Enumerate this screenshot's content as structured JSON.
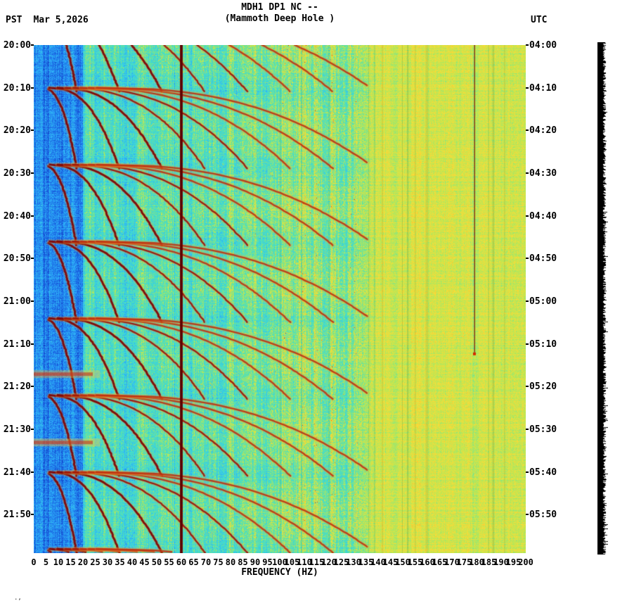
{
  "header": {
    "timezone_left": "PST",
    "date": "Mar 5,2026",
    "title_line1": "MDH1 DP1 NC --",
    "title_line2": "(Mammoth Deep Hole )",
    "timezone_right": "UTC"
  },
  "footer": {
    "corner_mark": ".,"
  },
  "chart_data": {
    "type": "heatmap",
    "subtype": "seismic-spectrogram",
    "title": "MDH1 DP1 NC -- (Mammoth Deep Hole )",
    "xlabel": "FREQUENCY (HZ)",
    "x_range_hz": [
      0,
      200
    ],
    "x_tick_step_hz": 5,
    "x_tick_labels": [
      "0",
      "5",
      "10",
      "15",
      "20",
      "25",
      "30",
      "35",
      "40",
      "45",
      "50",
      "55",
      "60",
      "65",
      "70",
      "75",
      "80",
      "85",
      "90",
      "95",
      "100",
      "105",
      "110",
      "115",
      "120",
      "125",
      "130",
      "135",
      "140",
      "145",
      "150",
      "155",
      "160",
      "165",
      "170",
      "175",
      "180",
      "185",
      "190",
      "195",
      "200"
    ],
    "y_left_timezone": "PST",
    "y_right_timezone": "UTC",
    "y_left_tick_labels": [
      "20:00",
      "20:10",
      "20:20",
      "20:30",
      "20:40",
      "20:50",
      "21:00",
      "21:10",
      "21:20",
      "21:30",
      "21:40",
      "21:50"
    ],
    "y_right_tick_labels": [
      "04:00",
      "04:10",
      "04:20",
      "04:30",
      "04:40",
      "04:50",
      "05:00",
      "05:10",
      "05:20",
      "05:30",
      "05:40",
      "05:50"
    ],
    "time_span_minutes": 119,
    "minutes_per_tick": 10,
    "features": {
      "mains_line_hz": 60,
      "narrow_line_hz": 179,
      "narrow_line_end_min": 72,
      "tremor_event_start_minutes": [
        -8,
        10,
        28,
        46,
        64,
        82,
        100,
        118
      ],
      "tremor_event_duration_min": 19,
      "harmonic_count": 8,
      "harmonics_ceiling_hz": 136,
      "broadband_burst_minutes": [
        77,
        93
      ],
      "high_freq_band_start_hz": 135
    },
    "palette": {
      "colormap_stops": [
        [
          0.0,
          10,
          30,
          160
        ],
        [
          0.15,
          25,
          95,
          225
        ],
        [
          0.3,
          45,
          175,
          250
        ],
        [
          0.42,
          62,
          218,
          215
        ],
        [
          0.52,
          90,
          225,
          170
        ],
        [
          0.62,
          185,
          232,
          85
        ],
        [
          0.72,
          250,
          220,
          55
        ],
        [
          0.82,
          255,
          150,
          35
        ],
        [
          0.9,
          232,
          55,
          30
        ],
        [
          1.0,
          128,
          0,
          0
        ]
      ],
      "line_60hz_color": "#6e0000",
      "trace_strip_color": "#000000",
      "background": "#ffffff",
      "text_color": "#000000"
    }
  }
}
